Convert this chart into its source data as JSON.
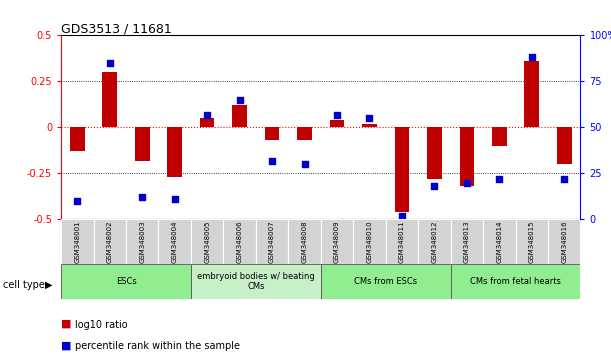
{
  "title": "GDS3513 / 11681",
  "samples": [
    "GSM348001",
    "GSM348002",
    "GSM348003",
    "GSM348004",
    "GSM348005",
    "GSM348006",
    "GSM348007",
    "GSM348008",
    "GSM348009",
    "GSM348010",
    "GSM348011",
    "GSM348012",
    "GSM348013",
    "GSM348014",
    "GSM348015",
    "GSM348016"
  ],
  "log10_ratio": [
    -0.13,
    0.3,
    -0.18,
    -0.27,
    0.05,
    0.12,
    -0.07,
    -0.07,
    0.04,
    0.02,
    -0.46,
    -0.28,
    -0.32,
    -0.1,
    0.36,
    -0.2
  ],
  "percentile_rank": [
    10,
    85,
    12,
    11,
    57,
    65,
    32,
    30,
    57,
    55,
    2,
    18,
    20,
    22,
    88,
    22
  ],
  "bar_color": "#c00000",
  "dot_color": "#0000cd",
  "cell_type_groups": [
    {
      "label": "ESCs",
      "start": 0,
      "end": 3,
      "color": "#90ee90"
    },
    {
      "label": "embryoid bodies w/ beating\nCMs",
      "start": 4,
      "end": 7,
      "color": "#c8f0c8"
    },
    {
      "label": "CMs from ESCs",
      "start": 8,
      "end": 11,
      "color": "#90ee90"
    },
    {
      "label": "CMs from fetal hearts",
      "start": 12,
      "end": 15,
      "color": "#90ee90"
    }
  ],
  "ylim_left": [
    -0.5,
    0.5
  ],
  "ylim_right": [
    0,
    100
  ],
  "yticks_left": [
    -0.5,
    -0.25,
    0,
    0.25,
    0.5
  ],
  "yticks_right": [
    0,
    25,
    50,
    75,
    100
  ],
  "legend_red": "log10 ratio",
  "legend_blue": "percentile rank within the sample",
  "cell_type_label": "cell type",
  "bar_width": 0.45
}
